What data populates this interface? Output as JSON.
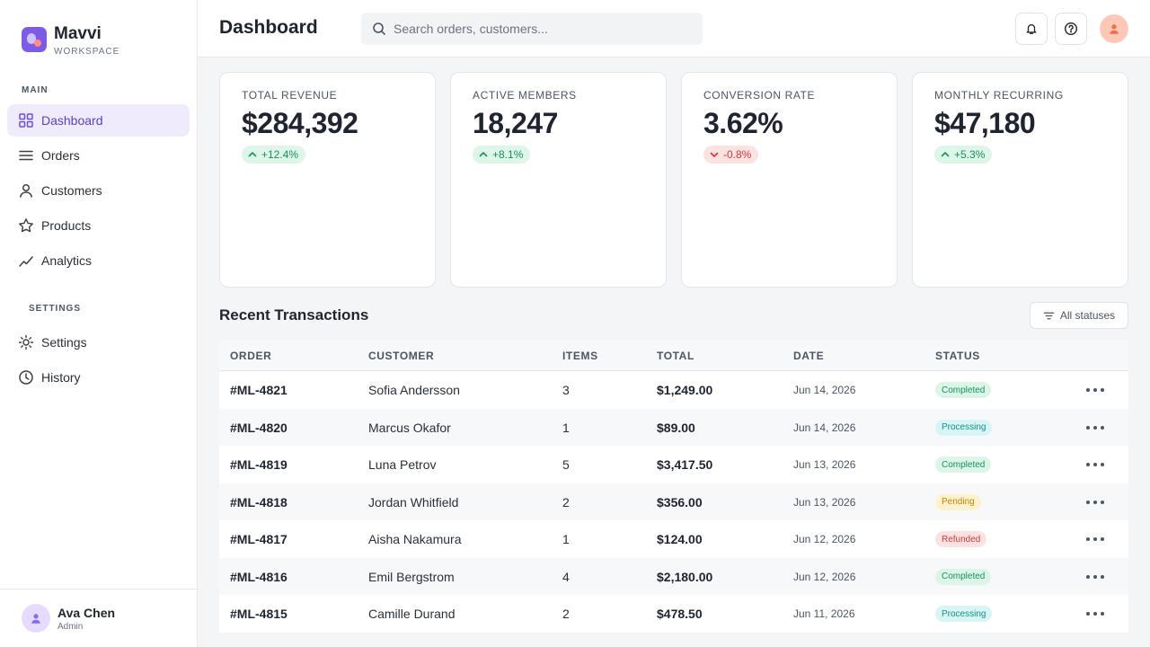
{
  "brand": {
    "name": "Mavvi",
    "subtitle": "WORKSPACE"
  },
  "sidebar": {
    "main_label": "MAIN",
    "settings_label": "SETTINGS",
    "main_items": [
      {
        "label": "Dashboard",
        "icon": "grid-icon",
        "active": true
      },
      {
        "label": "Orders",
        "icon": "list-icon",
        "active": false
      },
      {
        "label": "Customers",
        "icon": "user-icon",
        "active": false
      },
      {
        "label": "Products",
        "icon": "star-icon",
        "active": false
      },
      {
        "label": "Analytics",
        "icon": "trend-icon",
        "active": false
      }
    ],
    "settings_items": [
      {
        "label": "Settings",
        "icon": "sun-gear-icon"
      },
      {
        "label": "History",
        "icon": "clock-icon"
      }
    ],
    "user": {
      "name": "Ava Chen",
      "role": "Admin"
    }
  },
  "header": {
    "title": "Dashboard",
    "search_placeholder": "Search orders, customers..."
  },
  "stats": [
    {
      "label": "TOTAL REVENUE",
      "value": "$284,392",
      "change": "+12.4%",
      "trend": "up"
    },
    {
      "label": "ACTIVE MEMBERS",
      "value": "18,247",
      "change": "+8.1%",
      "trend": "up"
    },
    {
      "label": "CONVERSION RATE",
      "value": "3.62%",
      "change": "-0.8%",
      "trend": "down"
    },
    {
      "label": "MONTHLY RECURRING",
      "value": "$47,180",
      "change": "+5.3%",
      "trend": "up"
    }
  ],
  "transactions": {
    "title": "Recent Transactions",
    "filter_label": "All statuses",
    "columns": [
      "ORDER",
      "CUSTOMER",
      "ITEMS",
      "TOTAL",
      "DATE",
      "STATUS"
    ],
    "rows": [
      {
        "order": "#ML-4821",
        "customer": "Sofia Andersson",
        "items": "3",
        "total": "$1,249.00",
        "date": "Jun 14, 2026",
        "status": "Completed"
      },
      {
        "order": "#ML-4820",
        "customer": "Marcus Okafor",
        "items": "1",
        "total": "$89.00",
        "date": "Jun 14, 2026",
        "status": "Processing"
      },
      {
        "order": "#ML-4819",
        "customer": "Luna Petrov",
        "items": "5",
        "total": "$3,417.50",
        "date": "Jun 13, 2026",
        "status": "Completed"
      },
      {
        "order": "#ML-4818",
        "customer": "Jordan Whitfield",
        "items": "2",
        "total": "$356.00",
        "date": "Jun 13, 2026",
        "status": "Pending"
      },
      {
        "order": "#ML-4817",
        "customer": "Aisha Nakamura",
        "items": "1",
        "total": "$124.00",
        "date": "Jun 12, 2026",
        "status": "Refunded"
      },
      {
        "order": "#ML-4816",
        "customer": "Emil Bergstrom",
        "items": "4",
        "total": "$2,180.00",
        "date": "Jun 12, 2026",
        "status": "Completed"
      },
      {
        "order": "#ML-4815",
        "customer": "Camille Durand",
        "items": "2",
        "total": "$478.50",
        "date": "Jun 11, 2026",
        "status": "Processing"
      }
    ]
  },
  "colors": {
    "accent": "#7c5ce6",
    "positive": "#17925b",
    "negative": "#d33838",
    "pending": "#c08500",
    "processing": "#11928a"
  }
}
